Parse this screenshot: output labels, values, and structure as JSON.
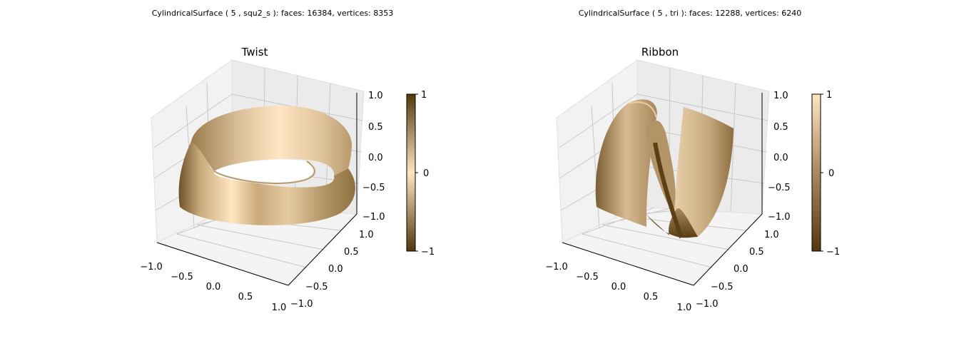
{
  "chart_data": [
    {
      "type": "surface3d",
      "suptitle": "CylindricalSurface ( 5 , squ2_s ):  faces: 16384,  vertices: 8353",
      "title": "Twist",
      "xticks": [
        "−1.0",
        "−0.5",
        "0.0",
        "0.5",
        "1.0"
      ],
      "yticks": [
        "−1.0",
        "−0.5",
        "0.0",
        "0.5",
        "1.0"
      ],
      "zticks": [
        "−1.0",
        "−0.5",
        "0.0",
        "0.5",
        "1.0"
      ],
      "xlim": [
        -1,
        1
      ],
      "ylim": [
        -1,
        1
      ],
      "zlim": [
        -1,
        1
      ],
      "grid": true,
      "colorbar": {
        "ticks": [
          "1",
          "0",
          "−1"
        ],
        "range": [
          -1,
          1
        ],
        "colors": [
          "#ffe5c2",
          "#54380c"
        ],
        "placement": "right"
      }
    },
    {
      "type": "surface3d",
      "suptitle": "CylindricalSurface ( 5 , tri ):  faces: 12288,  vertices: 6240",
      "title": "Ribbon",
      "xticks": [
        "−1.0",
        "−0.5",
        "0.0",
        "0.5",
        "1.0"
      ],
      "yticks": [
        "−1.0",
        "−0.5",
        "0.0",
        "0.5",
        "1.0"
      ],
      "zticks": [
        "−1.0",
        "−0.5",
        "0.0",
        "0.5",
        "1.0"
      ],
      "xlim": [
        -1,
        1
      ],
      "ylim": [
        -1,
        1
      ],
      "zlim": [
        -1,
        1
      ],
      "grid": true,
      "colorbar": {
        "ticks": [
          "1",
          "0",
          "−1"
        ],
        "range": [
          -1,
          1
        ],
        "colors": [
          "#ffe5c2",
          "#54380c"
        ],
        "placement": "right"
      }
    }
  ]
}
